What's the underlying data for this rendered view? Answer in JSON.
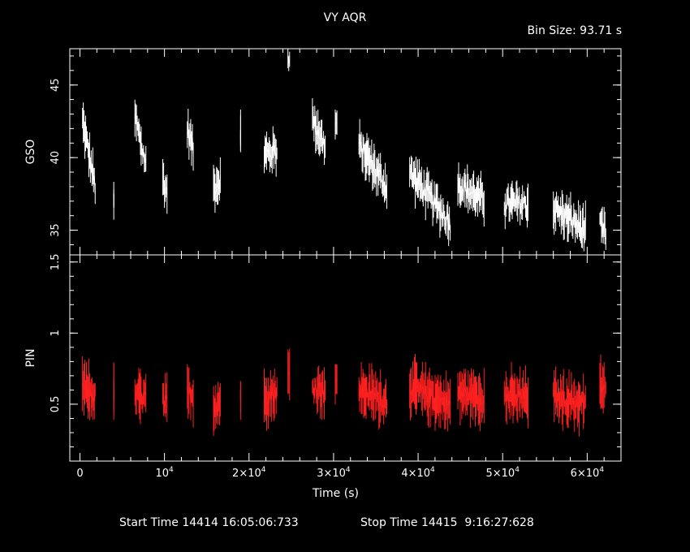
{
  "chart_data": {
    "type": "line",
    "title": "VY AQR",
    "subtitle": "Bin Size: 93.71 s",
    "xlabel": "Time (s)",
    "xlim": [
      -1200,
      64000
    ],
    "x_ticks": [
      {
        "value": 0,
        "label": "0"
      },
      {
        "value": 10000,
        "label": "10^4"
      },
      {
        "value": 20000,
        "label": "2×10^4"
      },
      {
        "value": 30000,
        "label": "3×10^4"
      },
      {
        "value": 40000,
        "label": "4×10^4"
      },
      {
        "value": 50000,
        "label": "5×10^4"
      },
      {
        "value": 60000,
        "label": "6×10^4"
      }
    ],
    "panels": [
      {
        "name": "GSO",
        "ylabel": "GSO",
        "ylim": [
          33.3,
          47.5
        ],
        "color": "#ffffff",
        "y_ticks": [
          35,
          40,
          45
        ],
        "segments": [
          {
            "x": [
              300,
              1800
            ],
            "y": [
              42.5,
              38.0
            ]
          },
          {
            "x": [
              4000,
              4000
            ],
            "y": [
              36.8,
              36.8
            ]
          },
          {
            "x": [
              6500,
              7800
            ],
            "y": [
              42.8,
              39.5
            ]
          },
          {
            "x": [
              9800,
              10300
            ],
            "y": [
              38.6,
              37.5
            ]
          },
          {
            "x": [
              12700,
              13400
            ],
            "y": [
              42.0,
              40.5
            ]
          },
          {
            "x": [
              15800,
              16600
            ],
            "y": [
              38.0,
              38.5
            ]
          },
          {
            "x": [
              19000,
              19000
            ],
            "y": [
              41.5,
              41.5
            ]
          },
          {
            "x": [
              21800,
              23300
            ],
            "y": [
              40.2,
              40.5
            ]
          },
          {
            "x": [
              24600,
              24800
            ],
            "y": [
              46.8,
              47.3
            ]
          },
          {
            "x": [
              27500,
              29000
            ],
            "y": [
              42.6,
              40.8
            ]
          },
          {
            "x": [
              30200,
              30400
            ],
            "y": [
              42.0,
              42.5
            ]
          },
          {
            "x": [
              33000,
              36300
            ],
            "y": [
              40.8,
              38.0
            ]
          },
          {
            "x": [
              39000,
              43800
            ],
            "y": [
              39.0,
              35.5
            ]
          },
          {
            "x": [
              44700,
              47800
            ],
            "y": [
              38.2,
              37.0
            ]
          },
          {
            "x": [
              50200,
              53000
            ],
            "y": [
              36.8,
              36.8
            ]
          },
          {
            "x": [
              56000,
              59800
            ],
            "y": [
              36.5,
              35.0
            ]
          },
          {
            "x": [
              61500,
              62200
            ],
            "y": [
              35.2,
              34.8
            ]
          }
        ]
      },
      {
        "name": "PIN",
        "ylabel": "PIN",
        "ylim": [
          0.1,
          1.55
        ],
        "color": "#ff2020",
        "y_ticks": [
          0.5,
          1,
          1.5
        ],
        "segments": [
          {
            "x": [
              300,
              1800
            ],
            "y": [
              0.62,
              0.55
            ]
          },
          {
            "x": [
              4000,
              4000
            ],
            "y": [
              0.58,
              0.58
            ]
          },
          {
            "x": [
              6500,
              7800
            ],
            "y": [
              0.55,
              0.55
            ]
          },
          {
            "x": [
              9800,
              10300
            ],
            "y": [
              0.52,
              0.5
            ]
          },
          {
            "x": [
              12700,
              13400
            ],
            "y": [
              0.58,
              0.55
            ]
          },
          {
            "x": [
              15800,
              16600
            ],
            "y": [
              0.48,
              0.52
            ]
          },
          {
            "x": [
              19000,
              19000
            ],
            "y": [
              0.55,
              0.55
            ]
          },
          {
            "x": [
              21800,
              23300
            ],
            "y": [
              0.55,
              0.58
            ]
          },
          {
            "x": [
              24600,
              24800
            ],
            "y": [
              0.72,
              0.68
            ]
          },
          {
            "x": [
              27500,
              29000
            ],
            "y": [
              0.62,
              0.6
            ]
          },
          {
            "x": [
              30200,
              30400
            ],
            "y": [
              0.65,
              0.62
            ]
          },
          {
            "x": [
              33000,
              36300
            ],
            "y": [
              0.6,
              0.52
            ]
          },
          {
            "x": [
              39000,
              43800
            ],
            "y": [
              0.62,
              0.5
            ]
          },
          {
            "x": [
              44700,
              47800
            ],
            "y": [
              0.58,
              0.55
            ]
          },
          {
            "x": [
              50200,
              53000
            ],
            "y": [
              0.55,
              0.55
            ]
          },
          {
            "x": [
              56000,
              59800
            ],
            "y": [
              0.55,
              0.5
            ]
          },
          {
            "x": [
              61500,
              62200
            ],
            "y": [
              0.62,
              0.62
            ]
          }
        ]
      }
    ]
  },
  "footer": {
    "start": "Start Time 14414 16:05:06:733",
    "stop": "Stop Time 14415  9:16:27:628"
  }
}
